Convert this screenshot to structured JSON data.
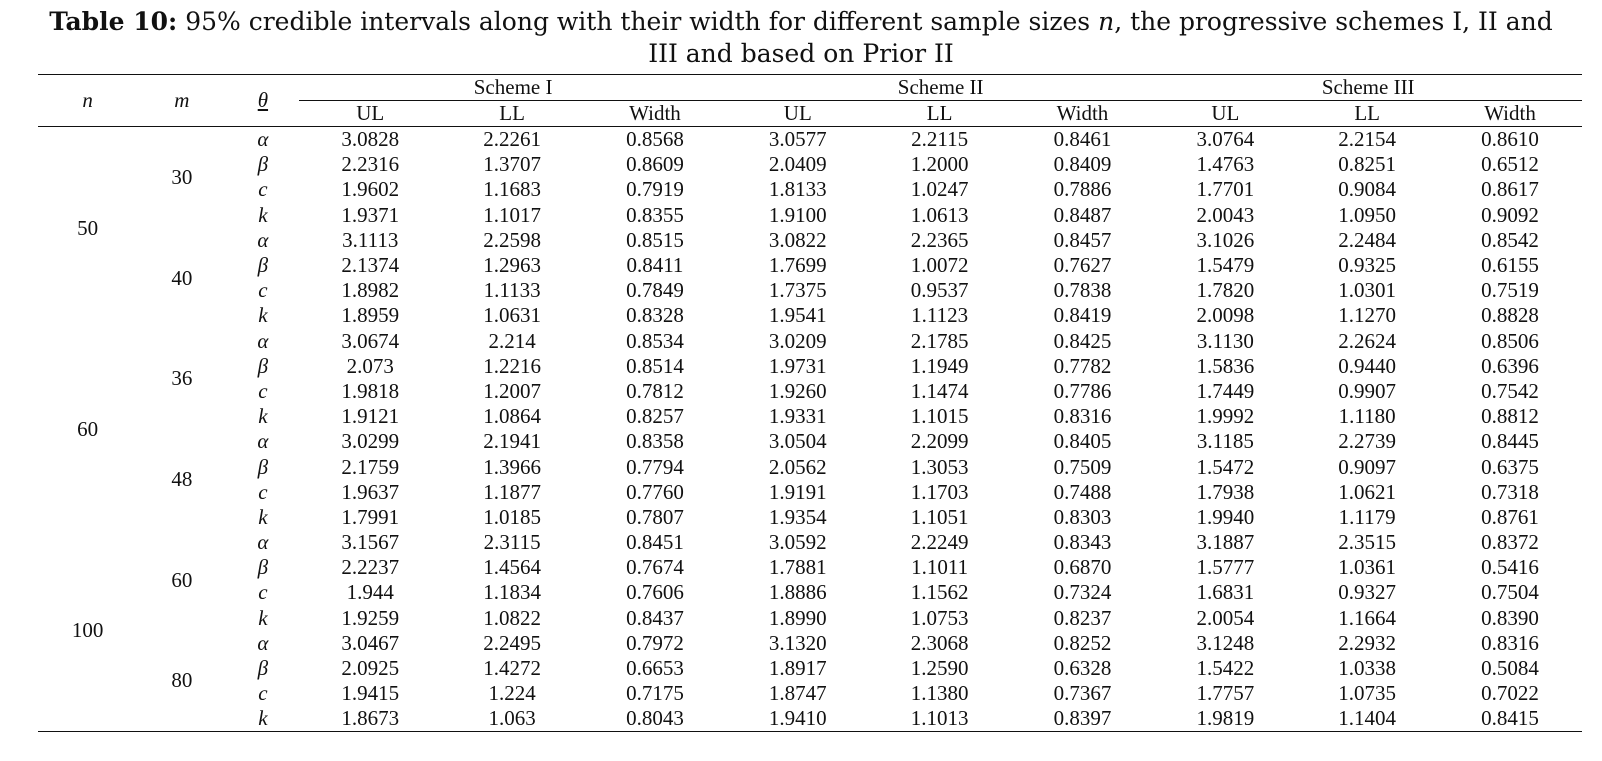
{
  "caption": {
    "label": "Table 10:",
    "text_part1": " 95% credible intervals along with their width for different sample sizes ",
    "n_symbol": "n",
    "text_part2": ", the progressive schemes I, II and III and based on Prior II"
  },
  "header": {
    "n": "n",
    "m": "m",
    "theta": "θ",
    "schemes": [
      "Scheme I",
      "Scheme II",
      "Scheme III"
    ],
    "sub": [
      "UL",
      "LL",
      "Width"
    ]
  },
  "groups": [
    {
      "n": "50",
      "blocks": [
        {
          "m": "30",
          "rows": [
            [
              "α",
              "3.0828",
              "2.2261",
              "0.8568",
              "3.0577",
              "2.2115",
              "0.8461",
              "3.0764",
              "2.2154",
              "0.8610"
            ],
            [
              "β",
              "2.2316",
              "1.3707",
              "0.8609",
              "2.0409",
              "1.2000",
              "0.8409",
              "1.4763",
              "0.8251",
              "0.6512"
            ],
            [
              "c",
              "1.9602",
              "1.1683",
              "0.7919",
              "1.8133",
              "1.0247",
              "0.7886",
              "1.7701",
              "0.9084",
              "0.8617"
            ],
            [
              "k",
              "1.9371",
              "1.1017",
              "0.8355",
              "1.9100",
              "1.0613",
              "0.8487",
              "2.0043",
              "1.0950",
              "0.9092"
            ]
          ]
        },
        {
          "m": "40",
          "rows": [
            [
              "α",
              "3.1113",
              "2.2598",
              "0.8515",
              "3.0822",
              "2.2365",
              "0.8457",
              "3.1026",
              "2.2484",
              "0.8542"
            ],
            [
              "β",
              "2.1374",
              "1.2963",
              "0.8411",
              "1.7699",
              "1.0072",
              "0.7627",
              "1.5479",
              "0.9325",
              "0.6155"
            ],
            [
              "c",
              "1.8982",
              "1.1133",
              "0.7849",
              "1.7375",
              "0.9537",
              "0.7838",
              "1.7820",
              "1.0301",
              "0.7519"
            ],
            [
              "k",
              "1.8959",
              "1.0631",
              "0.8328",
              "1.9541",
              "1.1123",
              "0.8419",
              "2.0098",
              "1.1270",
              "0.8828"
            ]
          ]
        }
      ]
    },
    {
      "n": "60",
      "blocks": [
        {
          "m": "36",
          "rows": [
            [
              "α",
              "3.0674",
              "2.214",
              "0.8534",
              "3.0209",
              "2.1785",
              "0.8425",
              "3.1130",
              "2.2624",
              "0.8506"
            ],
            [
              "β",
              "2.073",
              "1.2216",
              "0.8514",
              "1.9731",
              "1.1949",
              "0.7782",
              "1.5836",
              "0.9440",
              "0.6396"
            ],
            [
              "c",
              "1.9818",
              "1.2007",
              "0.7812",
              "1.9260",
              "1.1474",
              "0.7786",
              "1.7449",
              "0.9907",
              "0.7542"
            ],
            [
              "k",
              "1.9121",
              "1.0864",
              "0.8257",
              "1.9331",
              "1.1015",
              "0.8316",
              "1.9992",
              "1.1180",
              "0.8812"
            ]
          ]
        },
        {
          "m": "48",
          "rows": [
            [
              "α",
              "3.0299",
              "2.1941",
              "0.8358",
              "3.0504",
              "2.2099",
              "0.8405",
              "3.1185",
              "2.2739",
              "0.8445"
            ],
            [
              "β",
              "2.1759",
              "1.3966",
              "0.7794",
              "2.0562",
              "1.3053",
              "0.7509",
              "1.5472",
              "0.9097",
              "0.6375"
            ],
            [
              "c",
              "1.9637",
              "1.1877",
              "0.7760",
              "1.9191",
              "1.1703",
              "0.7488",
              "1.7938",
              "1.0621",
              "0.7318"
            ],
            [
              "k",
              "1.7991",
              "1.0185",
              "0.7807",
              "1.9354",
              "1.1051",
              "0.8303",
              "1.9940",
              "1.1179",
              "0.8761"
            ]
          ]
        }
      ]
    },
    {
      "n": "100",
      "blocks": [
        {
          "m": "60",
          "rows": [
            [
              "α",
              "3.1567",
              "2.3115",
              "0.8451",
              "3.0592",
              "2.2249",
              "0.8343",
              "3.1887",
              "2.3515",
              "0.8372"
            ],
            [
              "β",
              "2.2237",
              "1.4564",
              "0.7674",
              "1.7881",
              "1.1011",
              "0.6870",
              "1.5777",
              "1.0361",
              "0.5416"
            ],
            [
              "c",
              "1.944",
              "1.1834",
              "0.7606",
              "1.8886",
              "1.1562",
              "0.7324",
              "1.6831",
              "0.9327",
              "0.7504"
            ],
            [
              "k",
              "1.9259",
              "1.0822",
              "0.8437",
              "1.8990",
              "1.0753",
              "0.8237",
              "2.0054",
              "1.1664",
              "0.8390"
            ]
          ]
        },
        {
          "m": "80",
          "rows": [
            [
              "α",
              "3.0467",
              "2.2495",
              "0.7972",
              "3.1320",
              "2.3068",
              "0.8252",
              "3.1248",
              "2.2932",
              "0.8316"
            ],
            [
              "β",
              "2.0925",
              "1.4272",
              "0.6653",
              "1.8917",
              "1.2590",
              "0.6328",
              "1.5422",
              "1.0338",
              "0.5084"
            ],
            [
              "c",
              "1.9415",
              "1.224",
              "0.7175",
              "1.8747",
              "1.1380",
              "0.7367",
              "1.7757",
              "1.0735",
              "0.7022"
            ],
            [
              "k",
              "1.8673",
              "1.063",
              "0.8043",
              "1.9410",
              "1.1013",
              "0.8397",
              "1.9819",
              "1.1404",
              "0.8415"
            ]
          ]
        }
      ]
    }
  ]
}
